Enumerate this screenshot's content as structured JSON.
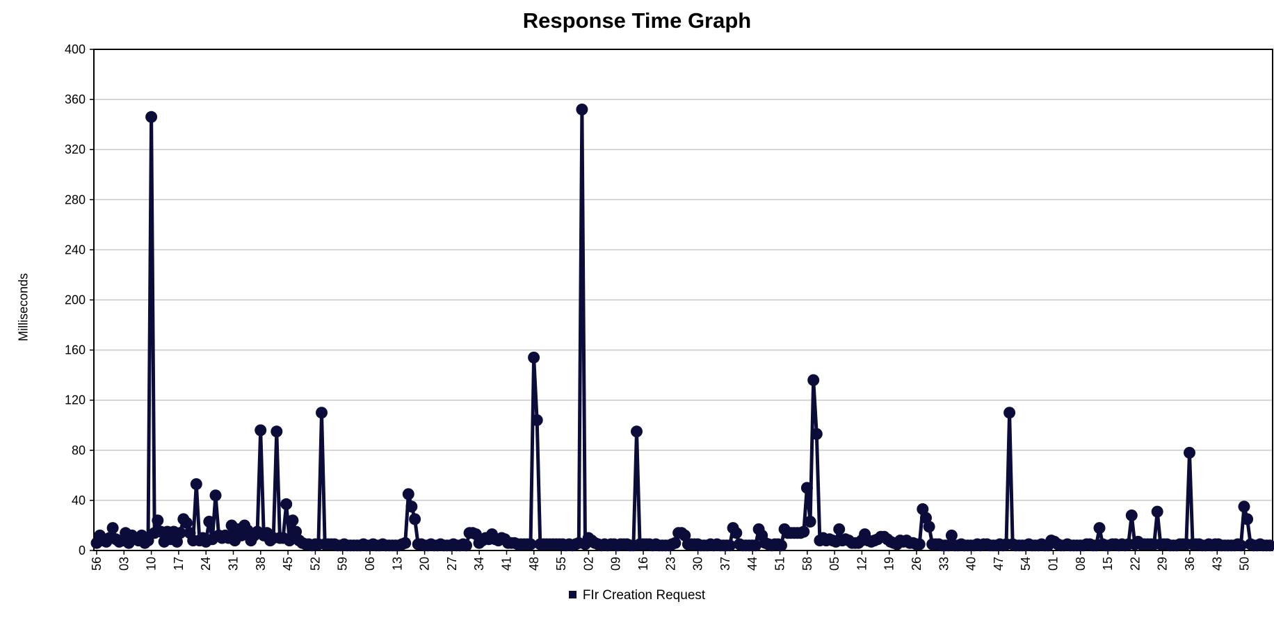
{
  "chart_data": {
    "type": "line",
    "title": "Response Time Graph",
    "xlabel": "",
    "ylabel": "Milliseconds",
    "ylim": [
      0,
      400
    ],
    "yticks": [
      0,
      40,
      80,
      120,
      160,
      200,
      240,
      280,
      320,
      360,
      400
    ],
    "grid": "horizontal",
    "legend_position": "bottom",
    "line_color": "#0c0c3a",
    "x_tick_labels": [
      "56",
      "03",
      "10",
      "17",
      "24",
      "31",
      "38",
      "45",
      "52",
      "59",
      "06",
      "13",
      "20",
      "27",
      "34",
      "41",
      "48",
      "55",
      "02",
      "09",
      "16",
      "23",
      "30",
      "37",
      "44",
      "51",
      "58",
      "05",
      "12",
      "19",
      "26",
      "33",
      "40",
      "47",
      "54",
      "01",
      "08",
      "15",
      "22",
      "29",
      "36",
      "43",
      "50"
    ],
    "series": [
      {
        "name": "FIr Creation Request",
        "values": [
          6,
          12,
          8,
          7,
          10,
          18,
          9,
          7,
          8,
          14,
          6,
          12,
          10,
          8,
          12,
          6,
          8,
          346,
          14,
          24,
          15,
          7,
          15,
          9,
          15,
          7,
          14,
          25,
          22,
          14,
          8,
          53,
          8,
          10,
          7,
          23,
          9,
          44,
          12,
          10,
          12,
          10,
          20,
          8,
          17,
          12,
          20,
          16,
          8,
          12,
          15,
          96,
          12,
          14,
          8,
          10,
          95,
          10,
          10,
          37,
          8,
          24,
          15,
          8,
          6,
          5,
          5,
          4,
          5,
          5,
          110,
          5,
          5,
          5,
          5,
          4,
          4,
          5,
          4,
          4,
          4,
          4,
          4,
          5,
          4,
          4,
          5,
          4,
          4,
          5,
          4,
          4,
          4,
          4,
          4,
          5,
          6,
          45,
          35,
          25,
          5,
          5,
          4,
          4,
          5,
          4,
          4,
          5,
          4,
          4,
          4,
          5,
          4,
          4,
          5,
          4,
          14,
          14,
          13,
          6,
          8,
          10,
          9,
          13,
          9,
          8,
          10,
          9,
          6,
          6,
          6,
          5,
          5,
          5,
          5,
          5,
          154,
          104,
          5,
          5,
          5,
          5,
          5,
          5,
          5,
          5,
          4,
          5,
          4,
          5,
          6,
          352,
          5,
          10,
          8,
          6,
          5,
          4,
          5,
          4,
          5,
          5,
          4,
          5,
          5,
          5,
          4,
          4,
          95,
          5,
          5,
          5,
          5,
          4,
          5,
          4,
          4,
          4,
          4,
          5,
          6,
          14,
          14,
          12,
          5,
          5,
          5,
          5,
          4,
          4,
          4,
          5,
          4,
          5,
          4,
          4,
          4,
          4,
          18,
          14,
          5,
          4,
          4,
          4,
          4,
          4,
          17,
          12,
          6,
          5,
          4,
          5,
          5,
          4,
          17,
          14,
          14,
          14,
          14,
          14,
          15,
          50,
          23,
          136,
          93,
          8,
          10,
          8,
          9,
          8,
          7,
          17,
          8,
          9,
          8,
          6,
          6,
          6,
          8,
          13,
          8,
          7,
          8,
          9,
          11,
          11,
          9,
          7,
          6,
          5,
          8,
          7,
          8,
          6,
          6,
          5,
          5,
          33,
          26,
          19,
          5,
          5,
          5,
          4,
          4,
          4,
          12,
          4,
          4,
          5,
          4,
          4,
          4,
          4,
          5,
          4,
          5,
          5,
          4,
          4,
          4,
          5,
          4,
          5,
          110,
          5,
          4,
          4,
          4,
          4,
          5,
          4,
          4,
          4,
          5,
          4,
          4,
          8,
          7,
          5,
          4,
          4,
          5,
          4,
          4,
          4,
          4,
          4,
          5,
          5,
          4,
          4,
          18,
          5,
          4,
          4,
          5,
          5,
          4,
          5,
          4,
          5,
          28,
          5,
          7,
          5,
          5,
          5,
          5,
          5,
          31,
          5,
          5,
          5,
          4,
          4,
          4,
          5,
          5,
          5,
          78,
          5,
          5,
          5,
          4,
          4,
          5,
          4,
          5,
          5,
          4,
          4,
          4,
          4,
          4,
          5,
          4,
          35,
          25,
          5,
          4,
          4,
          5,
          4,
          4,
          4
        ]
      }
    ]
  }
}
